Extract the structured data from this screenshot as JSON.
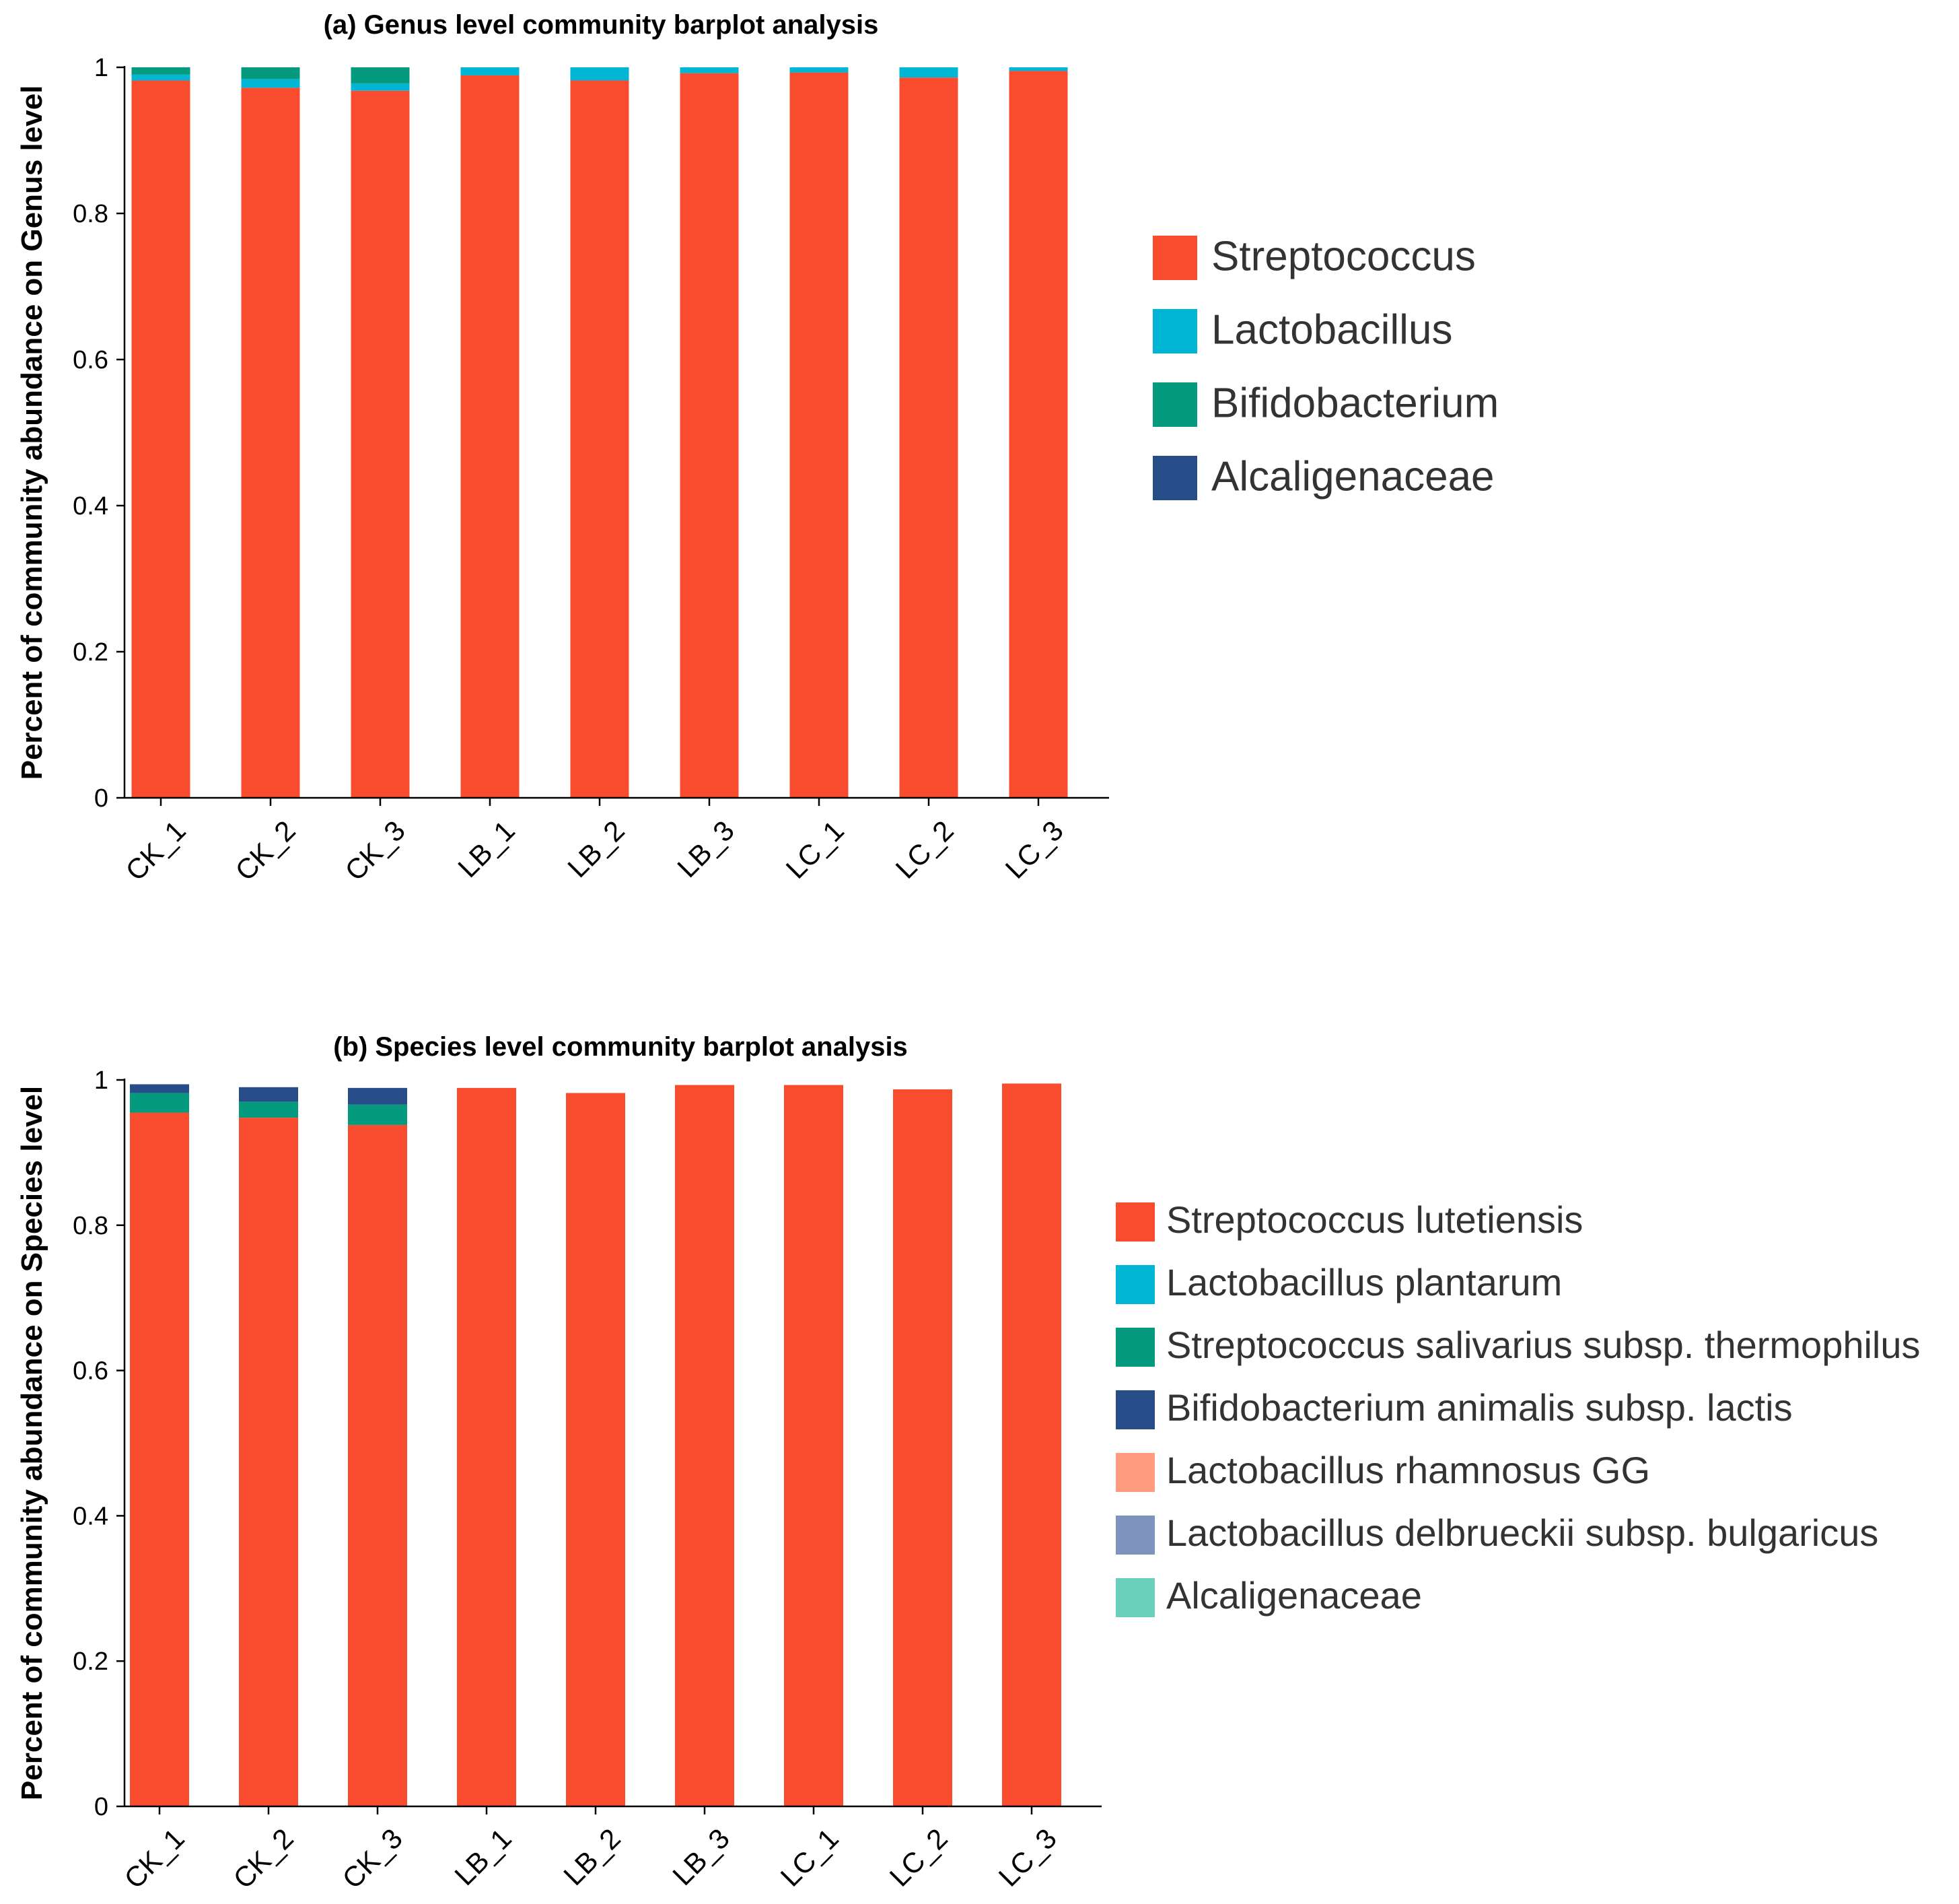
{
  "chart_data": [
    {
      "type": "bar",
      "stacked": true,
      "title": "(a) Genus level community barplot analysis",
      "xlabel": "",
      "ylabel": "Percent of community abundance on Genus level",
      "ylim": [
        0,
        1
      ],
      "yticks": [
        "0",
        "0.2",
        "0.4",
        "0.6",
        "0.8",
        "1"
      ],
      "categories": [
        "CK_1",
        "CK_2",
        "CK_3",
        "LB_1",
        "LB_2",
        "LB_3",
        "LC_1",
        "LC_2",
        "LC_3"
      ],
      "legend_position": "right",
      "series": [
        {
          "name": "Streptococcus",
          "color": "#F94C2E",
          "values": [
            0.982,
            0.972,
            0.968,
            0.989,
            0.982,
            0.992,
            0.993,
            0.986,
            0.995
          ]
        },
        {
          "name": "Lactobacillus",
          "color": "#00B6D4",
          "values": [
            0.008,
            0.012,
            0.01,
            0.011,
            0.018,
            0.008,
            0.007,
            0.014,
            0.005
          ]
        },
        {
          "name": "Bifidobacterium",
          "color": "#039A7E",
          "values": [
            0.01,
            0.016,
            0.022,
            0.0,
            0.0,
            0.0,
            0.0,
            0.0,
            0.0
          ]
        },
        {
          "name": "Alcaligenaceae",
          "color": "#264D88",
          "values": [
            0.0,
            0.0,
            0.0,
            0.0,
            0.0,
            0.0,
            0.0,
            0.0,
            0.0
          ]
        }
      ]
    },
    {
      "type": "bar",
      "stacked": true,
      "title": "(b) Species level community barplot analysis",
      "xlabel": "",
      "ylabel": "Percent of community abundance on Species level",
      "ylim": [
        0,
        1
      ],
      "yticks": [
        "0",
        "0.2",
        "0.4",
        "0.6",
        "0.8",
        "1"
      ],
      "categories": [
        "CK_1",
        "CK_2",
        "CK_3",
        "LB_1",
        "LB_2",
        "LB_3",
        "LC_1",
        "LC_2",
        "LC_3"
      ],
      "legend_position": "right",
      "series": [
        {
          "name": "Streptococcus lutetiensis",
          "color": "#F94C2E",
          "values": [
            0.955,
            0.948,
            0.938,
            0.989,
            0.982,
            0.993,
            0.993,
            0.987,
            0.995
          ]
        },
        {
          "name": "Lactobacillus plantarum",
          "color": "#00B6D4",
          "values": [
            0.0,
            0.0,
            0.0,
            0.0,
            0.0,
            0.0,
            0.0,
            0.0,
            0.0
          ]
        },
        {
          "name": "Streptococcus salivarius subsp. thermophilus",
          "color": "#039A7E",
          "values": [
            0.027,
            0.022,
            0.028,
            0.0,
            0.0,
            0.0,
            0.0,
            0.0,
            0.0
          ]
        },
        {
          "name": "Bifidobacterium animalis subsp. lactis",
          "color": "#264D88",
          "values": [
            0.012,
            0.02,
            0.023,
            0.0,
            0.0,
            0.0,
            0.0,
            0.0,
            0.0
          ]
        },
        {
          "name": "Lactobacillus rhamnosus GG",
          "color": "#FF9B7F",
          "values": [
            0.0,
            0.0,
            0.0,
            0.0,
            0.0,
            0.0,
            0.0,
            0.0,
            0.0
          ]
        },
        {
          "name": "Lactobacillus delbrueckii subsp. bulgaricus",
          "color": "#7E93BD",
          "values": [
            0.0,
            0.0,
            0.0,
            0.0,
            0.0,
            0.0,
            0.0,
            0.0,
            0.0
          ]
        },
        {
          "name": "Alcaligenaceae",
          "color": "#6ACFBB",
          "values": [
            0.0,
            0.0,
            0.0,
            0.0,
            0.0,
            0.0,
            0.0,
            0.0,
            0.0
          ]
        }
      ]
    }
  ]
}
